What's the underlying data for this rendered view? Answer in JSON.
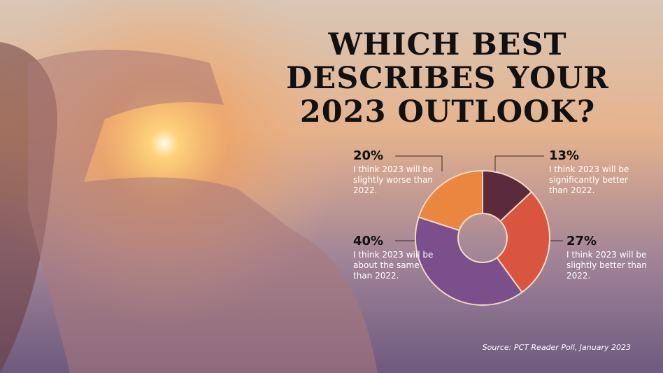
{
  "chart_data": {
    "type": "donut",
    "title": "WHICH BEST DESCRIBES YOUR 2023 OUTLOOK?",
    "categories": [
      "I think 2023 will be significantly better than 2022.",
      "I think 2023 will be slightly better than 2022.",
      "I think 2023 will be about the same than 2022.",
      "I think 2023 will be slightly worse than 2022."
    ],
    "values": [
      13,
      27,
      40,
      20
    ],
    "value_labels": [
      "13%",
      "27%",
      "40%",
      "20%"
    ],
    "colors": [
      "#5b2a3c",
      "#d9553f",
      "#7a4f8c",
      "#ea8640"
    ],
    "source": "Source: PCT Reader Poll, January 2023"
  }
}
